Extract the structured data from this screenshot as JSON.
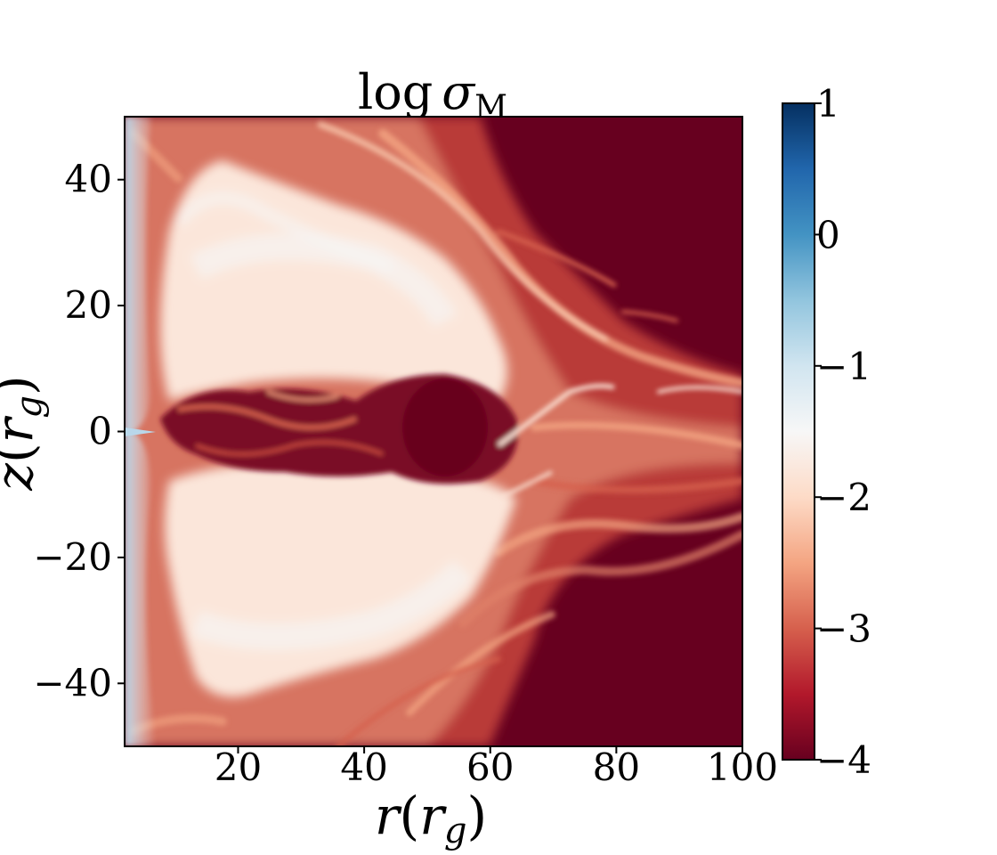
{
  "chart_data": {
    "type": "heatmap",
    "title": {
      "base": "log",
      "symbol": "σ",
      "subscript": "M"
    },
    "xlabel": {
      "var": "r",
      "paren_open": "(",
      "inner": "r",
      "sub": "g",
      "paren_close": ")"
    },
    "ylabel": {
      "var": "z",
      "paren_open": "(",
      "inner": "r",
      "sub": "g",
      "paren_close": ")"
    },
    "xlim": [
      2,
      100
    ],
    "ylim": [
      -50,
      50
    ],
    "xticks": [
      20,
      40,
      60,
      80,
      100
    ],
    "xtick_labels": [
      "20",
      "40",
      "60",
      "80",
      "100"
    ],
    "yticks": [
      40,
      20,
      0,
      -20,
      -40
    ],
    "ytick_labels": [
      "40",
      "20",
      "0",
      "−20",
      "−40"
    ],
    "colorbar": {
      "colormap": "RdBu",
      "range": [
        -4,
        1
      ],
      "ticks": [
        1,
        0,
        -1,
        -2,
        -3,
        -4
      ],
      "tick_labels": [
        "1",
        "0",
        "−1",
        "−2",
        "−3",
        "−4"
      ],
      "colors": [
        "#67001f",
        "#b2182b",
        "#d6604d",
        "#f4a582",
        "#fddbc7",
        "#f7f7f7",
        "#d1e5f0",
        "#92c5de",
        "#4393c3",
        "#2166ac",
        "#053061"
      ]
    },
    "grid": false
  }
}
